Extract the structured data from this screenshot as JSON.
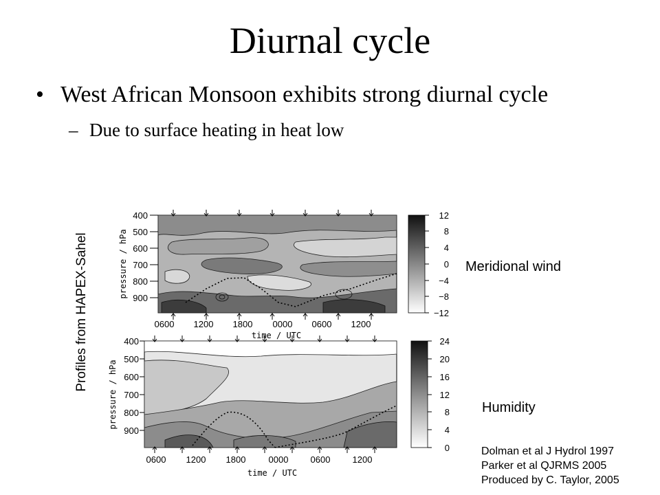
{
  "slide": {
    "title": "Diurnal cycle",
    "bullet": "West African Monsoon exhibits strong diurnal cycle",
    "sub_bullet": "Due to surface heating in heat low",
    "bullet_marker": "•",
    "sub_bullet_marker": "–",
    "side_label": "Profiles from HAPEX-Sahel",
    "references": [
      "Dolman et al J Hydrol 1997",
      "Parker et al QJRMS 2005",
      "Produced by C. Taylor, 2005"
    ]
  },
  "chart_data": [
    {
      "type": "heatmap",
      "caption": "Meridional wind",
      "ylabel": "pressure / hPa",
      "xlabel": "time / UTC",
      "yticks": [
        "400",
        "500",
        "600",
        "700",
        "800",
        "900"
      ],
      "xticks": [
        "0600",
        "1200",
        "1800",
        "0000",
        "0600",
        "1200"
      ],
      "colorbar": [
        "12",
        "8",
        "4",
        "0",
        "−4",
        "−8",
        "−12"
      ],
      "colorbar_range": [
        -12,
        12
      ]
    },
    {
      "type": "heatmap",
      "caption": "Humidity",
      "ylabel": "pressure / hPa",
      "xlabel": "time / UTC",
      "yticks": [
        "400",
        "500",
        "600",
        "700",
        "800",
        "900"
      ],
      "xticks": [
        "0600",
        "1200",
        "1800",
        "0000",
        "0600",
        "1200"
      ],
      "colorbar": [
        "24",
        "20",
        "16",
        "12",
        "8",
        "4",
        "0"
      ],
      "colorbar_range": [
        0,
        24
      ]
    }
  ]
}
